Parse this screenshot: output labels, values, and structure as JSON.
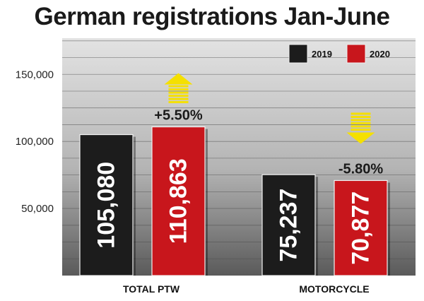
{
  "chart_data": {
    "type": "bar",
    "title": "German registrations Jan-June",
    "categories": [
      "TOTAL PTW",
      "MOTORCYCLE"
    ],
    "series": [
      {
        "name": "2019",
        "values": [
          105080,
          75237
        ],
        "labels": [
          "105,080",
          "75,237"
        ],
        "color": "#1c1c1c"
      },
      {
        "name": "2020",
        "values": [
          110863,
          70877
        ],
        "labels": [
          "110,863",
          "70,877"
        ],
        "color": "#c8161c"
      }
    ],
    "y_ticks": [
      50000,
      100000,
      150000
    ],
    "y_tick_labels": [
      "50,000",
      "100,000",
      "150,000"
    ],
    "ylim": [
      0,
      177000
    ],
    "annotations": [
      {
        "category": "TOTAL PTW",
        "text": "+5.50%",
        "direction": "up"
      },
      {
        "category": "MOTORCYCLE",
        "text": "-5.80%",
        "direction": "down"
      }
    ],
    "legend_position": "top-right",
    "xlabel": "",
    "ylabel": ""
  },
  "colors": {
    "arrow": "#f5e000",
    "grid": "#4a4a4a"
  }
}
